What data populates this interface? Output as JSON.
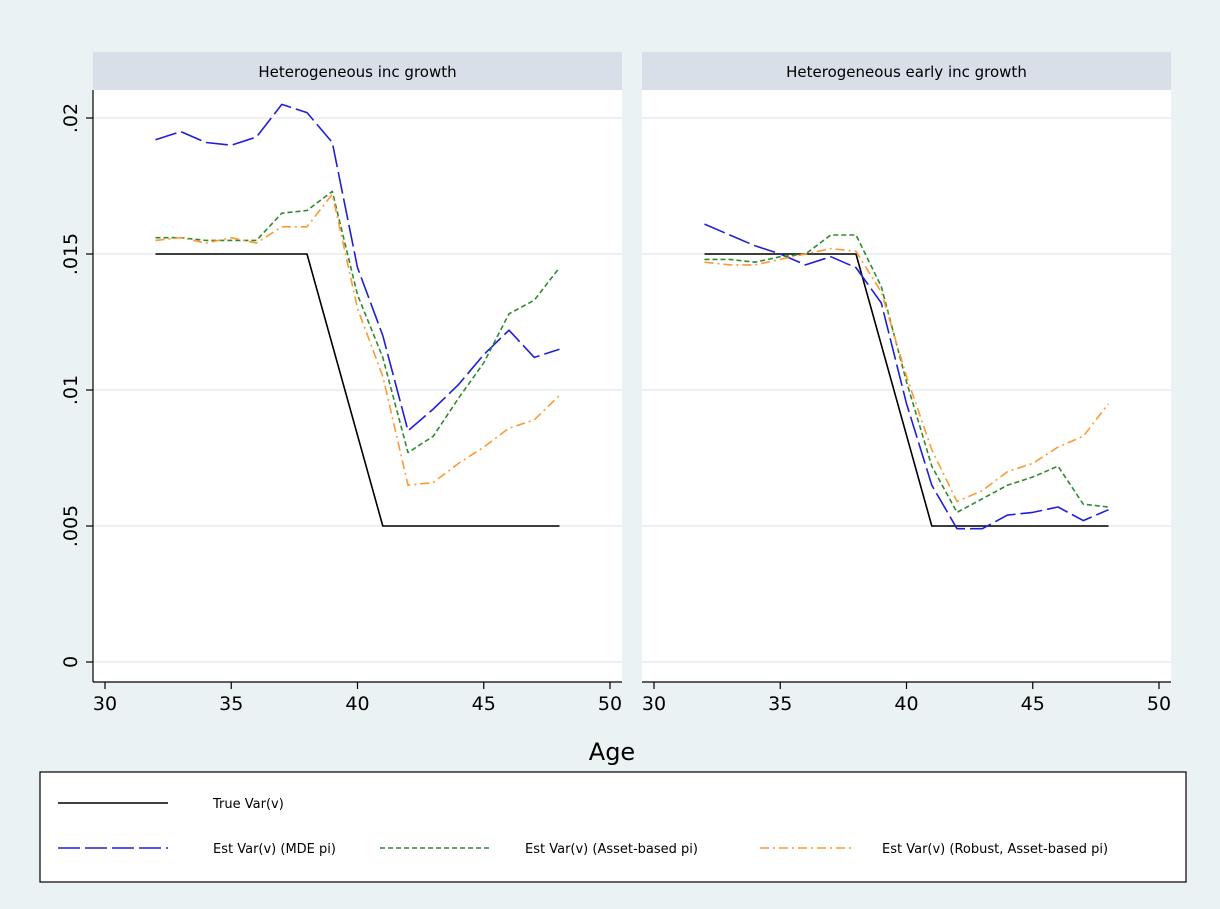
{
  "chart_data": {
    "type": "line",
    "xlabel": "Age",
    "ylabel": "",
    "xlim": [
      30,
      50
    ],
    "ylim": [
      0,
      0.021
    ],
    "x_ticks": [
      {
        "value": 30,
        "label": "30"
      },
      {
        "value": 35,
        "label": "35"
      },
      {
        "value": 40,
        "label": "40"
      },
      {
        "value": 45,
        "label": "45"
      },
      {
        "value": 50,
        "label": "50"
      }
    ],
    "y_ticks": [
      {
        "value": 0,
        "label": "0"
      },
      {
        "value": 0.005,
        "label": ".005"
      },
      {
        "value": 0.01,
        "label": ".01"
      },
      {
        "value": 0.015,
        "label": ".015"
      },
      {
        "value": 0.02,
        "label": ".02"
      }
    ],
    "grid": true,
    "legend_position": "bottom",
    "legend": [
      {
        "key": "true",
        "label": "True Var(v)"
      },
      {
        "key": "mde",
        "label": "Est Var(v) (MDE pi)"
      },
      {
        "key": "asset",
        "label": "Est Var(v) (Asset-based pi)"
      },
      {
        "key": "robust",
        "label": "Est Var(v) (Robust, Asset-based pi)"
      }
    ],
    "series_style": {
      "true": {
        "color": "#000000",
        "dash": ""
      },
      "mde": {
        "color": "#1f1fd9",
        "dash": "22,5"
      },
      "asset": {
        "color": "#2e8b2e",
        "dash": "5,3"
      },
      "robust": {
        "color": "#ff9933",
        "dash": "9,4,2,4"
      }
    },
    "panels": [
      {
        "title": "Heterogeneous inc growth",
        "series": {
          "true": {
            "x": [
              32,
              38,
              41,
              48
            ],
            "y": [
              0.015,
              0.015,
              0.005,
              0.005
            ]
          },
          "mde": {
            "x": [
              32,
              33,
              34,
              35,
              36,
              37,
              38,
              39,
              40,
              41,
              42,
              43,
              44,
              45,
              46,
              47,
              48
            ],
            "y": [
              0.0192,
              0.0195,
              0.0191,
              0.019,
              0.0193,
              0.0205,
              0.0202,
              0.0191,
              0.0145,
              0.012,
              0.0085,
              0.0093,
              0.0102,
              0.0113,
              0.0122,
              0.0112,
              0.0115
            ]
          },
          "asset": {
            "x": [
              32,
              33,
              34,
              35,
              36,
              37,
              38,
              39,
              40,
              41,
              42,
              43,
              44,
              45,
              46,
              47,
              48
            ],
            "y": [
              0.0156,
              0.0156,
              0.0155,
              0.0155,
              0.0155,
              0.0165,
              0.0166,
              0.0173,
              0.0135,
              0.0112,
              0.0077,
              0.0083,
              0.0097,
              0.011,
              0.0128,
              0.0133,
              0.0145
            ]
          },
          "robust": {
            "x": [
              32,
              33,
              34,
              35,
              36,
              37,
              38,
              39,
              40,
              41,
              42,
              43,
              44,
              45,
              46,
              47,
              48
            ],
            "y": [
              0.0155,
              0.0156,
              0.0154,
              0.0156,
              0.0154,
              0.016,
              0.016,
              0.0172,
              0.013,
              0.0105,
              0.0065,
              0.0066,
              0.0073,
              0.0079,
              0.0086,
              0.0089,
              0.0098
            ]
          }
        }
      },
      {
        "title": "Heterogeneous early inc growth",
        "series": {
          "true": {
            "x": [
              32,
              38,
              41,
              48
            ],
            "y": [
              0.015,
              0.015,
              0.005,
              0.005
            ]
          },
          "mde": {
            "x": [
              32,
              33,
              34,
              35,
              36,
              37,
              38,
              39,
              40,
              41,
              42,
              43,
              44,
              45,
              46,
              47,
              48
            ],
            "y": [
              0.0161,
              0.0157,
              0.0153,
              0.015,
              0.0146,
              0.0149,
              0.0145,
              0.0132,
              0.0095,
              0.0065,
              0.0049,
              0.0049,
              0.0054,
              0.0055,
              0.0057,
              0.0052,
              0.0056
            ]
          },
          "asset": {
            "x": [
              32,
              33,
              34,
              35,
              36,
              37,
              38,
              39,
              40,
              41,
              42,
              43,
              44,
              45,
              46,
              47,
              48
            ],
            "y": [
              0.0148,
              0.0148,
              0.0147,
              0.0149,
              0.015,
              0.0157,
              0.0157,
              0.0138,
              0.0103,
              0.0072,
              0.0055,
              0.006,
              0.0065,
              0.0068,
              0.0072,
              0.0058,
              0.0057
            ]
          },
          "robust": {
            "x": [
              32,
              33,
              34,
              35,
              36,
              37,
              38,
              39,
              40,
              41,
              42,
              43,
              44,
              45,
              46,
              47,
              48
            ],
            "y": [
              0.0147,
              0.0146,
              0.0146,
              0.0148,
              0.015,
              0.0152,
              0.0151,
              0.0136,
              0.0105,
              0.0078,
              0.0059,
              0.0063,
              0.007,
              0.0073,
              0.0079,
              0.0083,
              0.0095
            ]
          }
        }
      }
    ]
  }
}
